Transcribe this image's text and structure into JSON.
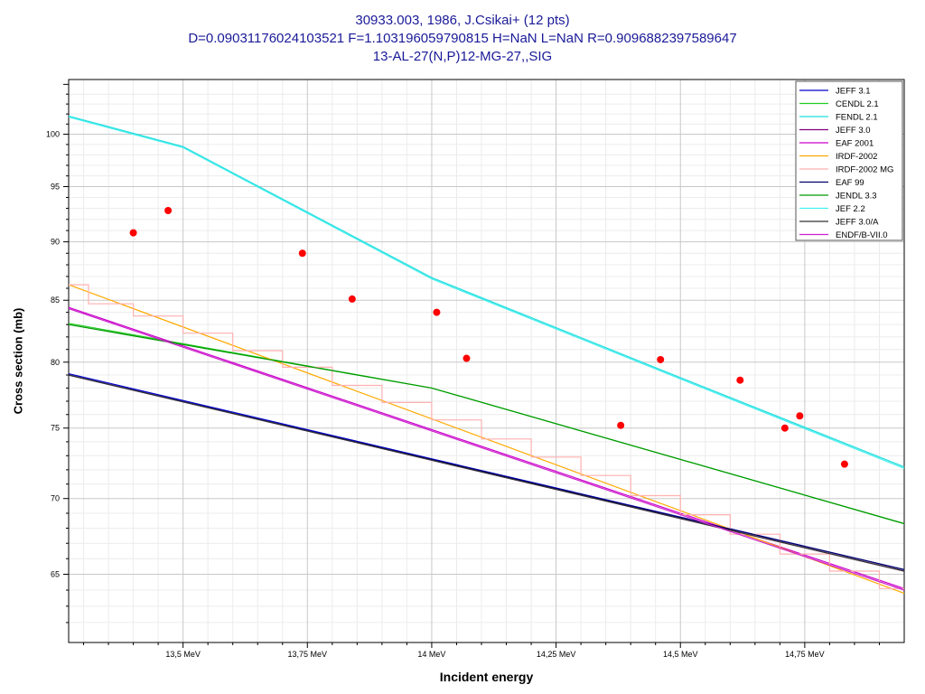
{
  "header": {
    "line1": "30933.003, 1986, J.Csikai+ (12 pts)",
    "line2": "D=0.09031176024103521 F=1.103196059790815 H=NaN L=NaN R=0.9096882397589647",
    "line3": "13-AL-27(N,P)12-MG-27,,SIG"
  },
  "chart_data": {
    "type": "line",
    "title": "30933.003, 1986, J.Csikai+ (12 pts)",
    "xlabel": "Incident energy",
    "ylabel": "Cross section (mb)",
    "xlim": [
      13.27,
      14.95
    ],
    "ylim": [
      60.8,
      105.5
    ],
    "y_scale": "log",
    "x_ticks": [
      {
        "value": 13.5,
        "label": "13,5 MeV"
      },
      {
        "value": 13.75,
        "label": "13,75 MeV"
      },
      {
        "value": 14.0,
        "label": "14 MeV"
      },
      {
        "value": 14.25,
        "label": "14,25 MeV"
      },
      {
        "value": 14.5,
        "label": "14,5 MeV"
      },
      {
        "value": 14.75,
        "label": "14,75 MeV"
      }
    ],
    "y_ticks": [
      {
        "value": 65,
        "label": "65"
      },
      {
        "value": 70,
        "label": "70"
      },
      {
        "value": 75,
        "label": "75"
      },
      {
        "value": 80,
        "label": "80"
      },
      {
        "value": 85,
        "label": "85"
      },
      {
        "value": 90,
        "label": "90"
      },
      {
        "value": 95,
        "label": "95"
      },
      {
        "value": 100,
        "label": "100"
      }
    ],
    "grid": true,
    "legend_position": "top-right",
    "series": [
      {
        "name": "JEFF 3.1",
        "color": "#0000cc",
        "style": "line",
        "x": [
          13.27,
          14.95
        ],
        "y": [
          79.1,
          65.3
        ]
      },
      {
        "name": "CENDL 2.1",
        "color": "#22cc22",
        "style": "line",
        "x": [
          13.27,
          14.0,
          14.95
        ],
        "y": [
          83.1,
          78.0,
          68.3
        ]
      },
      {
        "name": "FENDL 2.1",
        "color": "#22dddd",
        "style": "line",
        "x": [
          13.27,
          13.5,
          14.0,
          14.5,
          14.95
        ],
        "y": [
          101.8,
          98.8,
          86.9,
          78.8,
          72.2
        ]
      },
      {
        "name": "JEFF 3.0",
        "color": "#800080",
        "style": "line",
        "x": [
          13.27,
          14.95
        ],
        "y": [
          79.0,
          65.2
        ]
      },
      {
        "name": "EAF 2001",
        "color": "#cc00cc",
        "style": "line",
        "x": [
          13.27,
          14.95
        ],
        "y": [
          84.4,
          64.1
        ]
      },
      {
        "name": "IRDF-2002",
        "color": "#ffaa00",
        "style": "line",
        "x": [
          13.27,
          14.95
        ],
        "y": [
          86.3,
          63.8
        ]
      },
      {
        "name": "IRDF-2002 MG",
        "color": "#ffb0b0",
        "style": "step",
        "edges": [
          13.27,
          13.31,
          13.4,
          13.5,
          13.6,
          13.7,
          13.8,
          13.9,
          14.0,
          14.1,
          14.2,
          14.3,
          14.4,
          14.5,
          14.6,
          14.7,
          14.8,
          14.9,
          14.95
        ],
        "values": [
          86.3,
          84.7,
          83.7,
          82.3,
          80.9,
          79.6,
          78.2,
          76.9,
          75.6,
          74.2,
          72.9,
          71.6,
          70.2,
          68.9,
          67.6,
          66.3,
          65.2,
          64.1
        ]
      },
      {
        "name": "EAF 99",
        "color": "#000066",
        "style": "line",
        "x": [
          13.27,
          14.95
        ],
        "y": [
          79.0,
          65.3
        ]
      },
      {
        "name": "JENDL 3.3",
        "color": "#009900",
        "style": "line",
        "x": [
          13.27,
          14.0,
          14.95
        ],
        "y": [
          83.0,
          78.0,
          68.3
        ]
      },
      {
        "name": "JEF 2.2",
        "color": "#44eeee",
        "style": "line",
        "x": [
          13.27,
          13.5,
          14.0,
          14.5,
          14.95
        ],
        "y": [
          101.7,
          98.7,
          86.8,
          78.7,
          72.1
        ]
      },
      {
        "name": "JEFF 3.0/A",
        "color": "#333333",
        "style": "line",
        "x": [
          13.27,
          14.95
        ],
        "y": [
          79.0,
          65.2
        ]
      },
      {
        "name": "ENDF/B-VII.0",
        "color": "#cc22cc",
        "style": "line",
        "x": [
          13.27,
          14.95
        ],
        "y": [
          84.3,
          64.0
        ]
      }
    ],
    "points": {
      "name": "J.Csikai+ (1986)",
      "color": "#ff0000",
      "x": [
        13.4,
        13.47,
        13.74,
        13.84,
        14.01,
        14.07,
        14.38,
        14.46,
        14.62,
        14.71,
        14.74,
        14.83
      ],
      "y": [
        90.8,
        92.8,
        89.0,
        85.1,
        84.0,
        80.3,
        75.2,
        80.2,
        78.6,
        75.0,
        75.9,
        72.4
      ]
    }
  }
}
